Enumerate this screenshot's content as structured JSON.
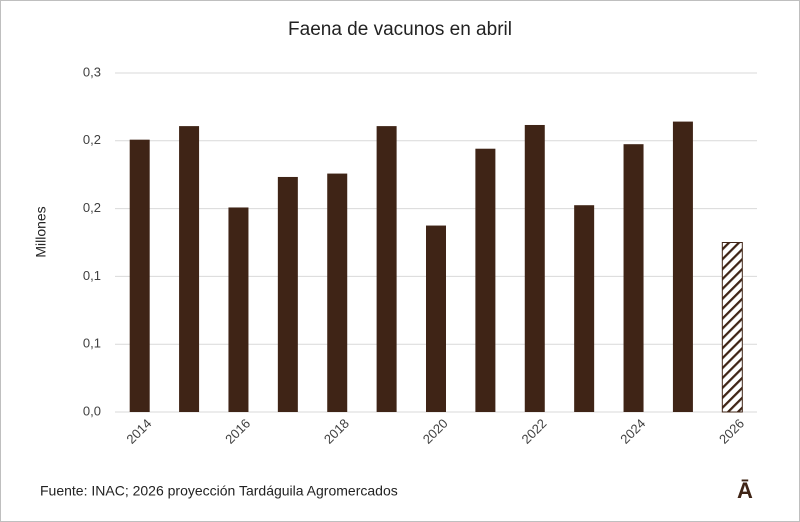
{
  "chart_data": {
    "type": "bar",
    "title": "Faena de vacunos en abril",
    "y_label": "Millones",
    "categories": [
      "2014",
      null,
      "2016",
      null,
      "2018",
      null,
      "2020",
      null,
      "2022",
      null,
      "2024",
      null,
      "2026"
    ],
    "values": [
      0.241,
      0.253,
      0.181,
      0.208,
      0.211,
      0.253,
      0.165,
      0.233,
      0.254,
      0.183,
      0.237,
      0.257,
      0.15
    ],
    "color": "#3f2416",
    "hatch": [
      false,
      false,
      false,
      false,
      false,
      false,
      false,
      false,
      false,
      false,
      false,
      false,
      true
    ],
    "ylim": [
      0,
      0.3
    ],
    "yticks": [
      {
        "value": 0,
        "label": "0,0"
      },
      {
        "value": 0.06,
        "label": "0,1"
      },
      {
        "value": 0.12,
        "label": "0,1"
      },
      {
        "value": 0.18,
        "label": "0,2"
      },
      {
        "value": 0.24,
        "label": "0,2"
      },
      {
        "value": 0.3,
        "label": "0,3"
      }
    ],
    "grid": true,
    "source": "Fuente: INAC; 2026 proyección Tardáguila Agromercados",
    "logo": "Ā"
  }
}
